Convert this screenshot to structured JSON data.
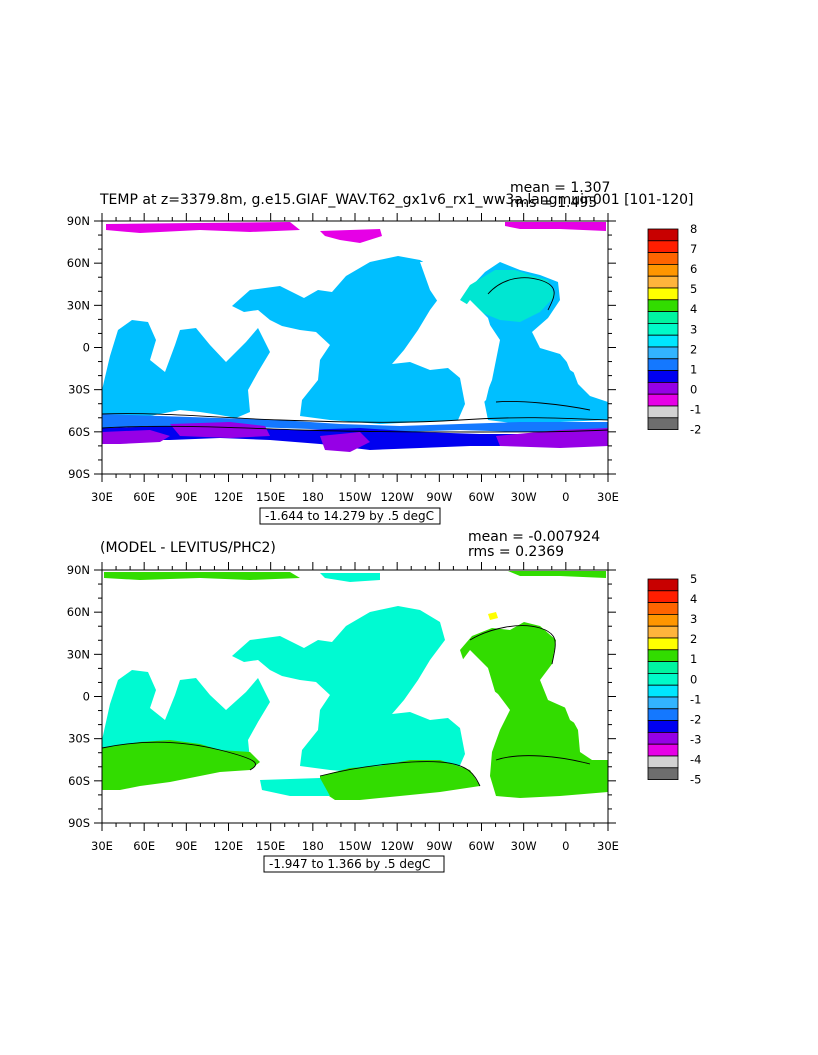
{
  "panels": [
    {
      "title": "TEMP at z=3379.8m, g.e15.GIAF_WAV.T62_gx1v6_rx1_ww3a.langmuir.001 [101-120]",
      "mean_label": "mean = 1.307",
      "rms_label": "rms = 1.495",
      "range_label": "-1.644 to 14.279 by .5 degC",
      "colorbar_labels": [
        "8",
        "7",
        "6",
        "5",
        "4",
        "3",
        "2",
        "1",
        "0",
        "-1",
        "-2"
      ],
      "colorbar_colors": [
        "#c80000",
        "#ff1e00",
        "#ff6400",
        "#ff9600",
        "#ffb43c",
        "#ffff00",
        "#32dc00",
        "#00f5a0",
        "#00fac8",
        "#00e6ff",
        "#32b4ff",
        "#1478ff",
        "#0000f0",
        "#9600e6",
        "#e600e6",
        "#d2d2d2",
        "#6e6e6e"
      ]
    },
    {
      "title": "(MODEL - LEVITUS/PHC2)",
      "mean_label": "mean = -0.007924",
      "rms_label": "rms = 0.2369",
      "range_label": "-1.947 to 1.366 by .5 degC",
      "colorbar_labels": [
        "5",
        "4",
        "3",
        "2",
        "1",
        "0",
        "-1",
        "-2",
        "-3",
        "-4",
        "-5"
      ],
      "colorbar_colors": [
        "#c80000",
        "#ff1e00",
        "#ff6400",
        "#ff9600",
        "#ffb43c",
        "#ffff00",
        "#32dc00",
        "#00f5a0",
        "#00fac8",
        "#00e6ff",
        "#32b4ff",
        "#1478ff",
        "#0000f0",
        "#9600e6",
        "#e600e6",
        "#d2d2d2",
        "#6e6e6e"
      ]
    }
  ],
  "axes": {
    "lon_labels": [
      "30E",
      "60E",
      "90E",
      "120E",
      "150E",
      "180",
      "150W",
      "120W",
      "90W",
      "60W",
      "30W",
      "0",
      "30E"
    ],
    "lat_labels": [
      "90N",
      "60N",
      "30N",
      "0",
      "30S",
      "60S",
      "90S"
    ]
  },
  "colors": {
    "panel1_main": "#00bfff",
    "panel1_cold": "#0000f0",
    "panel1_arctic": "#e600e6",
    "panel1_deep": "#9600e6",
    "panel1_warm": "#00e6d2",
    "panel2_main": "#00fad2",
    "panel2_green": "#32dc00"
  }
}
